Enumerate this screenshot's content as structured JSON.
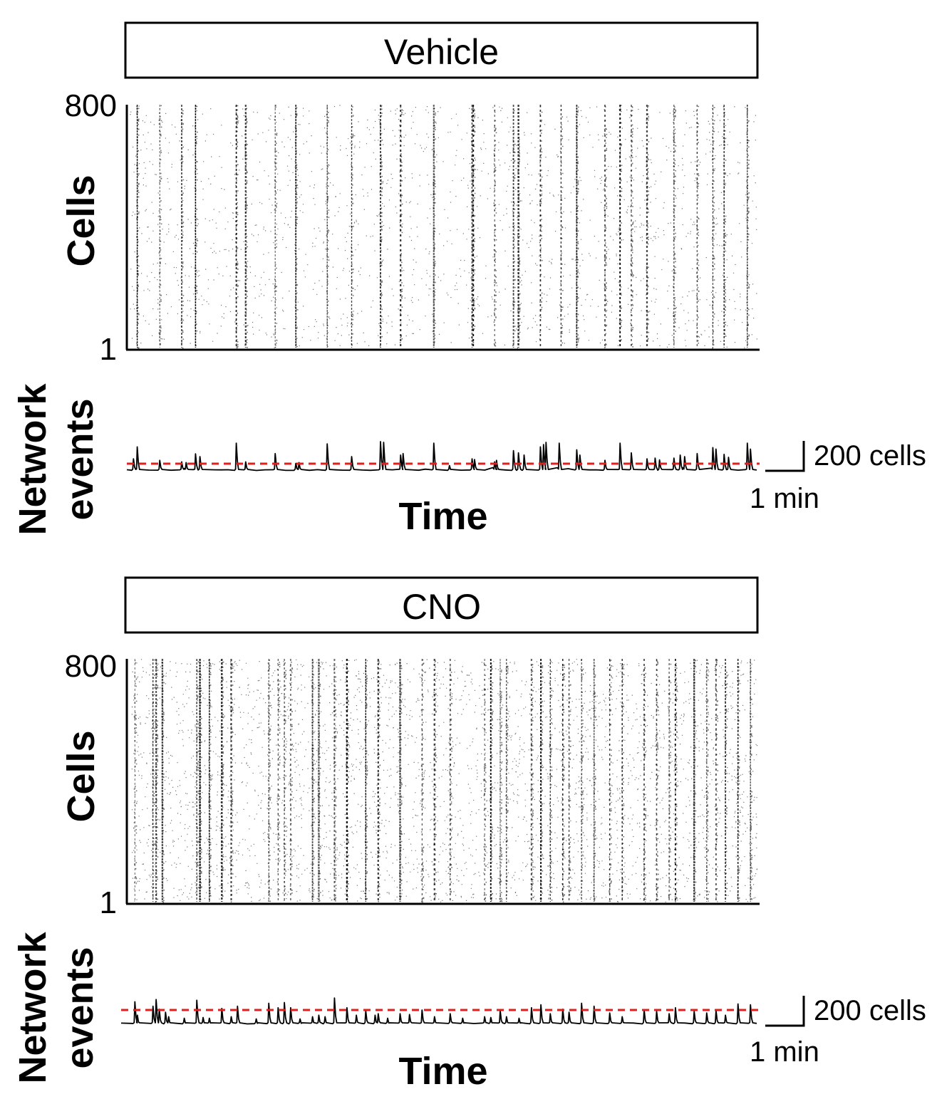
{
  "chart_data": [
    {
      "type": "raster",
      "condition": "Vehicle",
      "raster": {
        "ylabel": "Cells",
        "ytick_top": "800",
        "ytick_bottom": "1",
        "ylim": [
          1,
          800
        ],
        "burst_times": [
          0.012,
          0.048,
          0.083,
          0.105,
          0.17,
          0.185,
          0.232,
          0.265,
          0.315,
          0.354,
          0.4,
          0.432,
          0.485,
          0.546,
          0.548,
          0.582,
          0.612,
          0.62,
          0.655,
          0.688,
          0.713,
          0.758,
          0.782,
          0.8,
          0.825,
          0.868,
          0.905,
          0.93,
          0.948,
          0.985
        ],
        "scatter_density": 0.28
      },
      "trace": {
        "ylabel_line1": "Network",
        "ylabel_line2": "events",
        "xlabel": "Time",
        "threshold_color": "#e0201c",
        "threshold_cells": 40,
        "baseline_cells": 10,
        "peaks": [
          {
            "t": 0.006,
            "cells": 85
          },
          {
            "t": 0.012,
            "cells": 165
          },
          {
            "t": 0.048,
            "cells": 75
          },
          {
            "t": 0.083,
            "cells": 65
          },
          {
            "t": 0.09,
            "cells": 60
          },
          {
            "t": 0.105,
            "cells": 118
          },
          {
            "t": 0.112,
            "cells": 100
          },
          {
            "t": 0.17,
            "cells": 190
          },
          {
            "t": 0.185,
            "cells": 65
          },
          {
            "t": 0.232,
            "cells": 120
          },
          {
            "t": 0.265,
            "cells": 55
          },
          {
            "t": 0.27,
            "cells": 60
          },
          {
            "t": 0.315,
            "cells": 185
          },
          {
            "t": 0.354,
            "cells": 100
          },
          {
            "t": 0.4,
            "cells": 200
          },
          {
            "t": 0.405,
            "cells": 195
          },
          {
            "t": 0.432,
            "cells": 110
          },
          {
            "t": 0.436,
            "cells": 120
          },
          {
            "t": 0.485,
            "cells": 190
          },
          {
            "t": 0.51,
            "cells": 40
          },
          {
            "t": 0.546,
            "cells": 85
          },
          {
            "t": 0.55,
            "cells": 80
          },
          {
            "t": 0.582,
            "cells": 65
          },
          {
            "t": 0.585,
            "cells": 75
          },
          {
            "t": 0.612,
            "cells": 140
          },
          {
            "t": 0.62,
            "cells": 125
          },
          {
            "t": 0.629,
            "cells": 110
          },
          {
            "t": 0.655,
            "cells": 165
          },
          {
            "t": 0.66,
            "cells": 180
          },
          {
            "t": 0.664,
            "cells": 195
          },
          {
            "t": 0.685,
            "cells": 190
          },
          {
            "t": 0.713,
            "cells": 145
          },
          {
            "t": 0.718,
            "cells": 110
          },
          {
            "t": 0.758,
            "cells": 75
          },
          {
            "t": 0.782,
            "cells": 190
          },
          {
            "t": 0.8,
            "cells": 125
          },
          {
            "t": 0.825,
            "cells": 85
          },
          {
            "t": 0.838,
            "cells": 90
          },
          {
            "t": 0.845,
            "cells": 78
          },
          {
            "t": 0.868,
            "cells": 90
          },
          {
            "t": 0.878,
            "cells": 110
          },
          {
            "t": 0.885,
            "cells": 100
          },
          {
            "t": 0.905,
            "cells": 120
          },
          {
            "t": 0.93,
            "cells": 160
          },
          {
            "t": 0.935,
            "cells": 150
          },
          {
            "t": 0.948,
            "cells": 115
          },
          {
            "t": 0.955,
            "cells": 95
          },
          {
            "t": 0.985,
            "cells": 190
          },
          {
            "t": 0.99,
            "cells": 150
          }
        ],
        "scale_bar": {
          "y_label": "200 cells",
          "x_label": "1 min"
        }
      }
    },
    {
      "type": "raster",
      "condition": "CNO",
      "raster": {
        "ylabel": "Cells",
        "ytick_top": "800",
        "ytick_bottom": "1",
        "ylim": [
          1,
          800
        ],
        "burst_times": [
          0.006,
          0.035,
          0.04,
          0.05,
          0.105,
          0.11,
          0.125,
          0.145,
          0.16,
          0.22,
          0.235,
          0.245,
          0.255,
          0.29,
          0.3,
          0.325,
          0.345,
          0.375,
          0.395,
          0.43,
          0.465,
          0.485,
          0.51,
          0.565,
          0.575,
          0.59,
          0.6,
          0.64,
          0.655,
          0.67,
          0.69,
          0.7,
          0.72,
          0.74,
          0.765,
          0.785,
          0.82,
          0.84,
          0.86,
          0.87,
          0.9,
          0.92,
          0.935,
          0.95,
          0.97,
          0.99
        ],
        "scatter_density": 0.55
      },
      "trace": {
        "ylabel_line1": "Network",
        "ylabel_line2": "events",
        "xlabel": "Time",
        "threshold_color": "#e0201c",
        "threshold_cells": 50,
        "baseline_cells": 15,
        "peaks": [
          {
            "t": 0.006,
            "cells": 160
          },
          {
            "t": 0.01,
            "cells": 70
          },
          {
            "t": 0.035,
            "cells": 130
          },
          {
            "t": 0.04,
            "cells": 175
          },
          {
            "t": 0.045,
            "cells": 110
          },
          {
            "t": 0.055,
            "cells": 90
          },
          {
            "t": 0.06,
            "cells": 60
          },
          {
            "t": 0.085,
            "cells": 50
          },
          {
            "t": 0.105,
            "cells": 170
          },
          {
            "t": 0.115,
            "cells": 55
          },
          {
            "t": 0.125,
            "cells": 50
          },
          {
            "t": 0.145,
            "cells": 115
          },
          {
            "t": 0.16,
            "cells": 60
          },
          {
            "t": 0.17,
            "cells": 130
          },
          {
            "t": 0.2,
            "cells": 45
          },
          {
            "t": 0.22,
            "cells": 150
          },
          {
            "t": 0.235,
            "cells": 120
          },
          {
            "t": 0.245,
            "cells": 155
          },
          {
            "t": 0.255,
            "cells": 120
          },
          {
            "t": 0.27,
            "cells": 45
          },
          {
            "t": 0.29,
            "cells": 60
          },
          {
            "t": 0.3,
            "cells": 70
          },
          {
            "t": 0.31,
            "cells": 60
          },
          {
            "t": 0.325,
            "cells": 185
          },
          {
            "t": 0.345,
            "cells": 120
          },
          {
            "t": 0.36,
            "cells": 70
          },
          {
            "t": 0.375,
            "cells": 100
          },
          {
            "t": 0.39,
            "cells": 70
          },
          {
            "t": 0.395,
            "cells": 80
          },
          {
            "t": 0.41,
            "cells": 50
          },
          {
            "t": 0.43,
            "cells": 80
          },
          {
            "t": 0.445,
            "cells": 75
          },
          {
            "t": 0.465,
            "cells": 105
          },
          {
            "t": 0.485,
            "cells": 60
          },
          {
            "t": 0.51,
            "cells": 80
          },
          {
            "t": 0.53,
            "cells": 50
          },
          {
            "t": 0.565,
            "cells": 60
          },
          {
            "t": 0.575,
            "cells": 55
          },
          {
            "t": 0.59,
            "cells": 100
          },
          {
            "t": 0.6,
            "cells": 60
          },
          {
            "t": 0.62,
            "cells": 50
          },
          {
            "t": 0.64,
            "cells": 120
          },
          {
            "t": 0.655,
            "cells": 140
          },
          {
            "t": 0.67,
            "cells": 80
          },
          {
            "t": 0.69,
            "cells": 110
          },
          {
            "t": 0.7,
            "cells": 90
          },
          {
            "t": 0.72,
            "cells": 150
          },
          {
            "t": 0.74,
            "cells": 130
          },
          {
            "t": 0.765,
            "cells": 85
          },
          {
            "t": 0.785,
            "cells": 60
          },
          {
            "t": 0.82,
            "cells": 105
          },
          {
            "t": 0.84,
            "cells": 95
          },
          {
            "t": 0.86,
            "cells": 80
          },
          {
            "t": 0.87,
            "cells": 120
          },
          {
            "t": 0.9,
            "cells": 95
          },
          {
            "t": 0.92,
            "cells": 85
          },
          {
            "t": 0.935,
            "cells": 100
          },
          {
            "t": 0.95,
            "cells": 70
          },
          {
            "t": 0.97,
            "cells": 145
          },
          {
            "t": 0.99,
            "cells": 140
          }
        ],
        "scale_bar": {
          "y_label": "200 cells",
          "x_label": "1 min"
        }
      }
    }
  ]
}
